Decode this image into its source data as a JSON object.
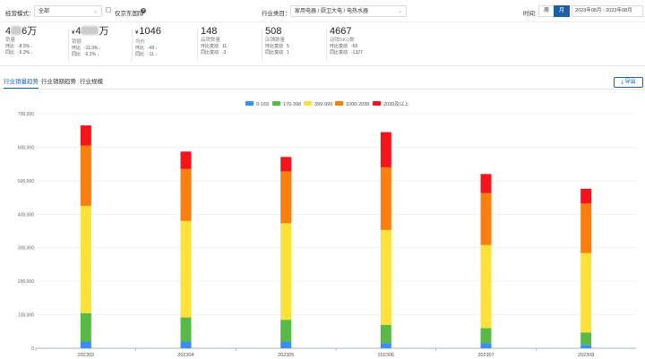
{
  "filters": {
    "operation_mode_label": "经营模式：",
    "operation_mode_value": "全部",
    "jd_only_label": "仅京东国际",
    "industry_label": "行业类目：",
    "industry_value": "家用电器 / 厨卫大电 / 电热水器",
    "time_label": "时间:",
    "period_week": "周",
    "period_month": "月",
    "date_range": "2023年08月 - 2023年08月"
  },
  "kpis": [
    {
      "value": "4",
      "value_suffix": "6万",
      "name": "销量",
      "currency": "",
      "mom_label": "环比",
      "mom": "-8.5%",
      "mom_dir": "↓",
      "yoy_label": "同比",
      "yoy": "-5.3%",
      "yoy_dir": "↓",
      "masked": true
    },
    {
      "value": "4",
      "value_suffix": "万",
      "name": "销额",
      "currency": "¥",
      "mom_label": "环比",
      "mom": "-11.9%",
      "mom_dir": "↓",
      "yoy_label": "同比",
      "yoy": "-6.2%",
      "yoy_dir": "↓",
      "masked": true
    },
    {
      "value": "1046",
      "value_suffix": "",
      "name": "均价",
      "currency": "¥",
      "mom_label": "环比",
      "mom": "-49",
      "mom_dir": "↓",
      "yoy_label": "同比",
      "yoy": "-11",
      "yoy_dir": "↓",
      "masked": false
    },
    {
      "value": "148",
      "value_suffix": "",
      "name": "品牌数量",
      "currency": "",
      "mom_label": "环比变动",
      "mom": "11",
      "mom_dir": "",
      "yoy_label": "同比变动",
      "yoy": "-3",
      "yoy_dir": "",
      "masked": false
    },
    {
      "value": "508",
      "value_suffix": "",
      "name": "店铺数量",
      "currency": "",
      "mom_label": "环比变动",
      "mom": "5",
      "mom_dir": "",
      "yoy_label": "同比变动",
      "yoy": "1",
      "yoy_dir": "",
      "masked": false
    },
    {
      "value": "4667",
      "value_suffix": "",
      "name": "动销SKU数",
      "currency": "",
      "mom_label": "环比变动",
      "mom": "-65",
      "mom_dir": "",
      "yoy_label": "同比变动",
      "yoy": "-1327",
      "yoy_dir": "",
      "masked": false
    }
  ],
  "tabs": [
    "行业销量趋势",
    "行业销额趋势",
    "行业规模"
  ],
  "export_label": "导出",
  "export_icon": "download-icon",
  "colors": {
    "primary": "#1e5fa8",
    "series": [
      "#3d8ef0",
      "#5ab946",
      "#fde23a",
      "#fb7f0e",
      "#f6141c"
    ]
  },
  "chart_data": {
    "type": "bar",
    "stacked": true,
    "categories": [
      "202303",
      "202304",
      "202305",
      "202306",
      "202307",
      "202308"
    ],
    "series": [
      {
        "name": "0-169",
        "values": [
          20000,
          20000,
          20000,
          15000,
          15000,
          10000
        ]
      },
      {
        "name": "170-398",
        "values": [
          85000,
          72000,
          65000,
          55000,
          45000,
          37000
        ]
      },
      {
        "name": "399-999",
        "values": [
          320000,
          288000,
          288000,
          283000,
          248000,
          237000
        ]
      },
      {
        "name": "1000-2038",
        "values": [
          180000,
          155000,
          155000,
          187000,
          155000,
          148000
        ]
      },
      {
        "name": "2039及以上",
        "values": [
          60000,
          52000,
          43000,
          105000,
          57000,
          44000
        ]
      }
    ],
    "ylim": [
      0,
      700000
    ],
    "yticks": [
      "0",
      "100,000",
      "200,000",
      "300,000",
      "400,000",
      "500,000",
      "600,000",
      "700,000"
    ],
    "grid": true,
    "legend": "top-center"
  }
}
